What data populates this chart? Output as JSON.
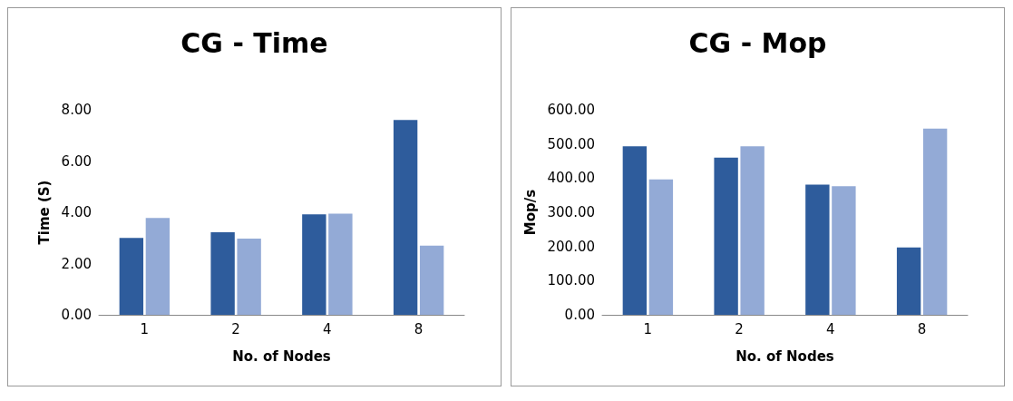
{
  "chart_data": [
    {
      "type": "bar",
      "title": "CG - Time",
      "xlabel": "No. of Nodes",
      "ylabel": "Time (S)",
      "categories": [
        "1",
        "2",
        "4",
        "8"
      ],
      "series": [
        {
          "color": "#2e5c9c",
          "values": [
            3.0,
            3.22,
            3.92,
            7.6
          ]
        },
        {
          "color": "#93aad6",
          "values": [
            3.78,
            2.97,
            3.95,
            2.7
          ]
        }
      ],
      "ylim": [
        0,
        8
      ],
      "yticks": [
        {
          "value": 0,
          "label": "0.00"
        },
        {
          "value": 2,
          "label": "2.00"
        },
        {
          "value": 4,
          "label": "4.00"
        },
        {
          "value": 6,
          "label": "6.00"
        },
        {
          "value": 8,
          "label": "8.00"
        }
      ],
      "grid": false,
      "legend": false
    },
    {
      "type": "bar",
      "title": "CG - Mop",
      "xlabel": "No. of Nodes",
      "ylabel": "Mop/s",
      "categories": [
        "1",
        "2",
        "4",
        "8"
      ],
      "series": [
        {
          "color": "#2e5c9c",
          "values": [
            493,
            460,
            381,
            197
          ]
        },
        {
          "color": "#93aad6",
          "values": [
            396,
            493,
            376,
            545
          ]
        }
      ],
      "ylim": [
        0,
        600
      ],
      "yticks": [
        {
          "value": 0,
          "label": "0.00"
        },
        {
          "value": 100,
          "label": "100.00"
        },
        {
          "value": 200,
          "label": "200.00"
        },
        {
          "value": 300,
          "label": "300.00"
        },
        {
          "value": 400,
          "label": "400.00"
        },
        {
          "value": 500,
          "label": "500.00"
        },
        {
          "value": 600,
          "label": "600.00"
        }
      ],
      "grid": false,
      "legend": false
    }
  ]
}
